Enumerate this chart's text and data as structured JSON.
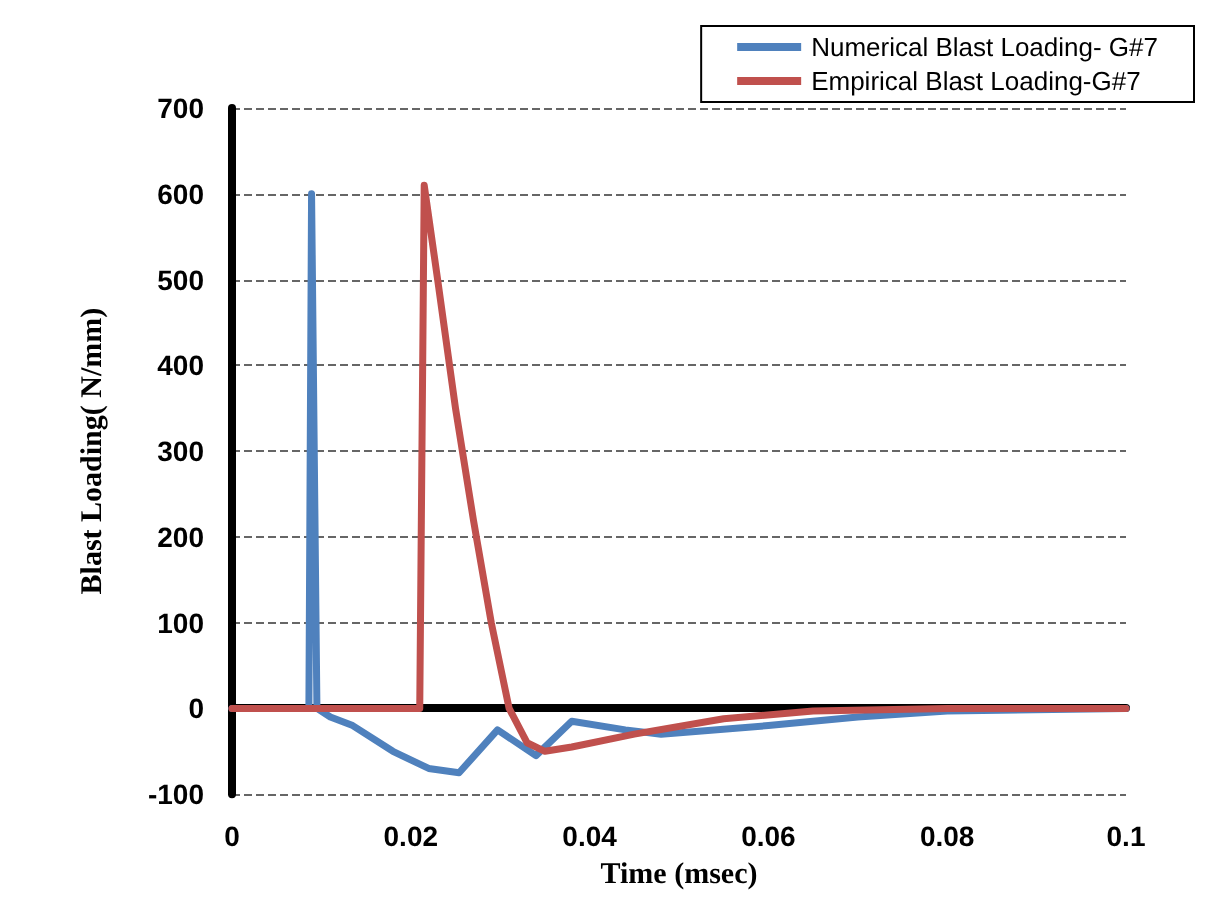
{
  "chart_data": {
    "type": "line",
    "xlabel": "Time (msec)",
    "ylabel": "Blast Loading( N/mm)",
    "xlim": [
      0,
      0.1
    ],
    "xticks": [
      0,
      0.02,
      0.04,
      0.06,
      0.08,
      0.1
    ],
    "ylim": [
      -100,
      700
    ],
    "yticks": [
      -100,
      0,
      100,
      200,
      300,
      400,
      500,
      600,
      700
    ],
    "grid": "y",
    "legend": "top right",
    "marker": "none",
    "line_style": "solid",
    "series": [
      {
        "name": "Numerical Blast Loading- G#7",
        "color": "#4f81bd",
        "x": [
          0,
          0.0086,
          0.0089,
          0.0095,
          0.011,
          0.0135,
          0.018,
          0.022,
          0.0254,
          0.0297,
          0.034,
          0.038,
          0.044,
          0.048,
          0.06,
          0.07,
          0.08,
          0.1
        ],
        "values": [
          0,
          0,
          600,
          0,
          -10,
          -20,
          -50,
          -70,
          -75,
          -25,
          -55,
          -15,
          -25,
          -30,
          -20,
          -10,
          -3,
          0
        ]
      },
      {
        "name": "Empirical Blast Loading-G#7",
        "color": "#c0504d",
        "x": [
          0,
          0.021,
          0.0215,
          0.023,
          0.025,
          0.027,
          0.029,
          0.031,
          0.033,
          0.035,
          0.038,
          0.045,
          0.055,
          0.065,
          0.08,
          0.1
        ],
        "values": [
          0,
          0,
          610,
          500,
          350,
          220,
          100,
          0,
          -40,
          -50,
          -45,
          -30,
          -12,
          -3,
          0,
          0
        ]
      }
    ]
  }
}
